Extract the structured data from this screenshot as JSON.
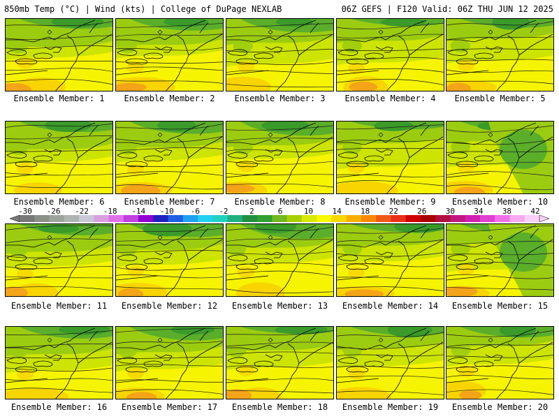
{
  "header": {
    "title_left": "850mb Temp (°C) | Wind (kts) | College of DuPage NEXLAB",
    "title_right": "06Z GEFS | F120 Valid: 06Z THU JUN 12 2025"
  },
  "members": [
    {
      "label": "Ensemble Member: 1"
    },
    {
      "label": "Ensemble Member: 2"
    },
    {
      "label": "Ensemble Member: 3"
    },
    {
      "label": "Ensemble Member: 4"
    },
    {
      "label": "Ensemble Member: 5"
    },
    {
      "label": "Ensemble Member: 6"
    },
    {
      "label": "Ensemble Member: 7"
    },
    {
      "label": "Ensemble Member: 8"
    },
    {
      "label": "Ensemble Member: 9"
    },
    {
      "label": "Ensemble Member: 10"
    },
    {
      "label": "Ensemble Member: 11"
    },
    {
      "label": "Ensemble Member: 12"
    },
    {
      "label": "Ensemble Member: 13"
    },
    {
      "label": "Ensemble Member: 14"
    },
    {
      "label": "Ensemble Member: 15"
    },
    {
      "label": "Ensemble Member: 16"
    },
    {
      "label": "Ensemble Member: 17"
    },
    {
      "label": "Ensemble Member: 18"
    },
    {
      "label": "Ensemble Member: 19"
    },
    {
      "label": "Ensemble Member: 20"
    }
  ],
  "colorbar": {
    "labels": [
      "-30",
      "-26",
      "-22",
      "-18",
      "-14",
      "-10",
      "-6",
      "-2",
      "2",
      "6",
      "10",
      "14",
      "18",
      "22",
      "26",
      "30",
      "34",
      "38",
      "42"
    ],
    "colors": [
      "#787878",
      "#8c9088",
      "#9ca49c",
      "#b0b4b0",
      "#c8c8d8",
      "#d8a0e0",
      "#e070e8",
      "#c040e0",
      "#9000d0",
      "#2020c0",
      "#2060e0",
      "#20a0f0",
      "#20d0f0",
      "#20d0c0",
      "#20b080",
      "#209040",
      "#30a030",
      "#70b820",
      "#a8d000",
      "#d8e800",
      "#f8f800",
      "#f8d800",
      "#f8b000",
      "#f88800",
      "#f05818",
      "#e83018",
      "#d00000",
      "#a80000",
      "#b01040",
      "#c01880",
      "#d020b0",
      "#e040d0",
      "#f070e8",
      "#f8a8f0",
      "#f8d0f8"
    ]
  },
  "fill_colors": {
    "dark_green": "#3a9a2a",
    "green": "#5aae2a",
    "light_green": "#9ccc10",
    "yellow_green": "#cce400",
    "yellow": "#f6f400",
    "gold": "#f8d400",
    "orange": "#f4a418"
  }
}
